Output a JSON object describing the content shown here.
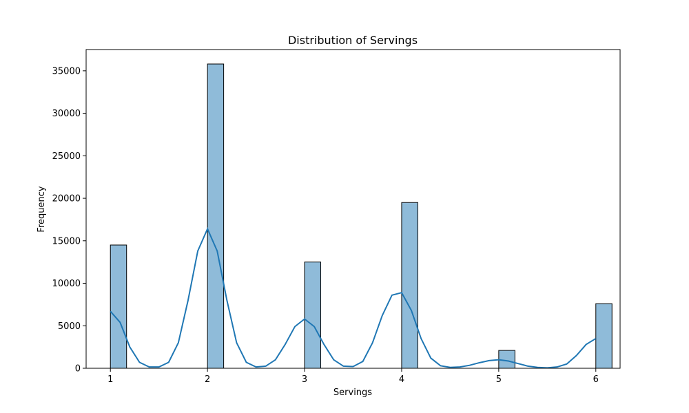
{
  "chart_data": {
    "type": "bar",
    "subtype": "histogram-with-kde",
    "title": "Distribution of Servings",
    "xlabel": "Servings",
    "ylabel": "Frequency",
    "xlim": [
      0.75,
      6.25
    ],
    "ylim": [
      0,
      37500
    ],
    "xticks": [
      1,
      2,
      3,
      4,
      5,
      6
    ],
    "yticks": [
      0,
      5000,
      10000,
      15000,
      20000,
      25000,
      30000,
      35000
    ],
    "bin_width": 0.1667,
    "bars": [
      {
        "x": 1,
        "value": 14500
      },
      {
        "x": 2,
        "value": 35800
      },
      {
        "x": 3,
        "value": 12500
      },
      {
        "x": 4,
        "value": 19500
      },
      {
        "x": 5,
        "value": 2100
      },
      {
        "x": 6,
        "value": 7600
      }
    ],
    "kde": {
      "x": [
        1.0,
        1.1,
        1.2,
        1.3,
        1.4,
        1.5,
        1.6,
        1.7,
        1.8,
        1.9,
        2.0,
        2.1,
        2.2,
        2.3,
        2.4,
        2.5,
        2.6,
        2.7,
        2.8,
        2.9,
        3.0,
        3.1,
        3.2,
        3.3,
        3.4,
        3.5,
        3.6,
        3.7,
        3.8,
        3.9,
        4.0,
        4.1,
        4.2,
        4.3,
        4.4,
        4.5,
        4.6,
        4.7,
        4.8,
        4.9,
        5.0,
        5.1,
        5.2,
        5.3,
        5.4,
        5.5,
        5.6,
        5.7,
        5.8,
        5.9,
        6.0
      ],
      "y": [
        6700,
        5400,
        2500,
        700,
        150,
        150,
        700,
        3000,
        8000,
        13800,
        16400,
        13800,
        8000,
        3000,
        700,
        150,
        250,
        1000,
        2800,
        4900,
        5800,
        4900,
        2800,
        1000,
        250,
        200,
        800,
        3000,
        6200,
        8600,
        8900,
        6800,
        3500,
        1200,
        300,
        100,
        150,
        350,
        650,
        900,
        1000,
        850,
        550,
        250,
        100,
        50,
        150,
        500,
        1500,
        2800,
        3500
      ]
    },
    "colors": {
      "bar_fill": "#8fbbd9",
      "bar_edge": "#000000",
      "kde_line": "#1f77b4"
    },
    "grid": false,
    "legend": "none"
  }
}
